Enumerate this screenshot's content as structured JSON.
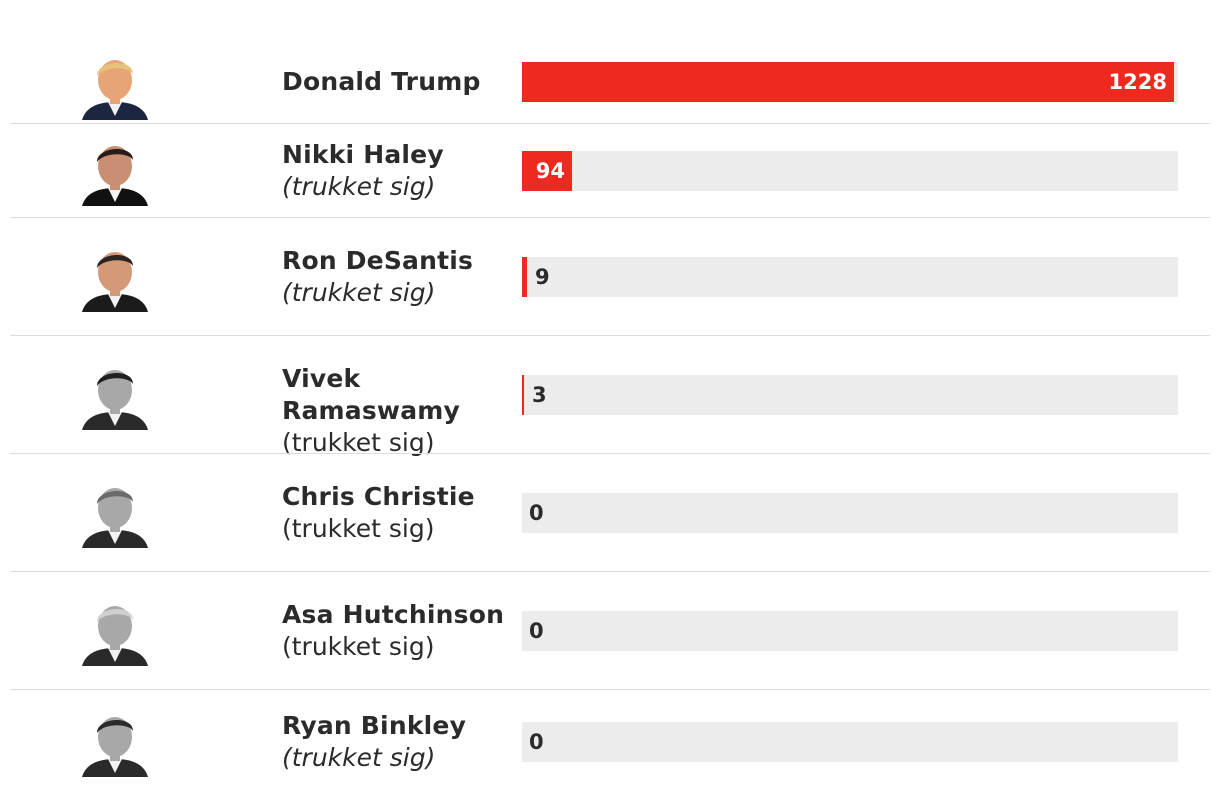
{
  "colors": {
    "bar": "#ee2a20",
    "track": "#ececec"
  },
  "chart_data": {
    "type": "bar",
    "orientation": "horizontal",
    "xlim": [
      0,
      1228
    ],
    "grid": false,
    "series": [
      {
        "values": [
          1228,
          94,
          9,
          3,
          0,
          0,
          0
        ]
      }
    ],
    "categories": [
      "Donald Trump",
      "Nikki Haley",
      "Ron DeSantis",
      "Vivek Ramaswamy",
      "Chris Christie",
      "Asa Hutchinson",
      "Ryan Binkley"
    ],
    "rows": [
      {
        "name": "Donald Trump",
        "status": "",
        "status_italic": false,
        "value": 1228,
        "label": "1228",
        "portrait": "color"
      },
      {
        "name": "Nikki Haley",
        "status": "(trukket sig)",
        "status_italic": true,
        "value": 94,
        "label": "94",
        "portrait": "color"
      },
      {
        "name": "Ron DeSantis",
        "status": "(trukket sig)",
        "status_italic": true,
        "value": 9,
        "label": "9",
        "portrait": "color"
      },
      {
        "name": "Vivek Ramaswamy",
        "status": "(trukket sig)",
        "status_italic": false,
        "value": 3,
        "label": "3",
        "portrait": "gray"
      },
      {
        "name": "Chris Christie",
        "status": "(trukket sig)",
        "status_italic": false,
        "value": 0,
        "label": "0",
        "portrait": "gray"
      },
      {
        "name": "Asa Hutchinson",
        "status": "(trukket sig)",
        "status_italic": false,
        "value": 0,
        "label": "0",
        "portrait": "gray"
      },
      {
        "name": "Ryan Binkley",
        "status": "(trukket sig)",
        "status_italic": true,
        "value": 0,
        "label": "0",
        "portrait": "gray"
      }
    ]
  }
}
